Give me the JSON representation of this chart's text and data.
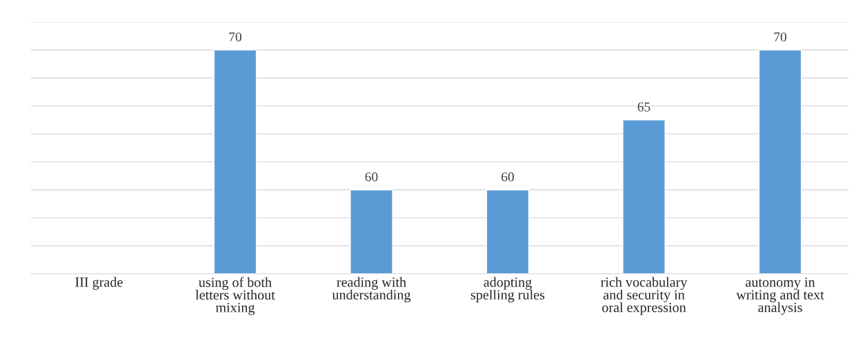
{
  "chart_data": {
    "type": "bar",
    "categories": [
      "III grade",
      "using of both letters without mixing",
      "reading with understanding",
      "adopting spelling rules",
      "rich vocabulary and security in oral expression",
      "autonomy in writing and text analysis"
    ],
    "values": [
      null,
      70,
      60,
      60,
      65,
      70
    ],
    "color": "#5b9bd5",
    "ylim": [
      54,
      72
    ],
    "yticks": [
      {
        "value": 54,
        "label": null
      },
      {
        "value": 56,
        "label": null
      },
      {
        "value": 58,
        "label": null
      },
      {
        "value": 60,
        "label": null
      },
      {
        "value": 62,
        "label": null
      },
      {
        "value": 64,
        "label": null
      },
      {
        "value": 66,
        "label": null
      },
      {
        "value": 68,
        "label": null
      },
      {
        "value": 70,
        "label": null
      },
      {
        "value": 72,
        "label": null
      }
    ],
    "grid": "y",
    "tick_labels": "x",
    "data_labels": true
  }
}
